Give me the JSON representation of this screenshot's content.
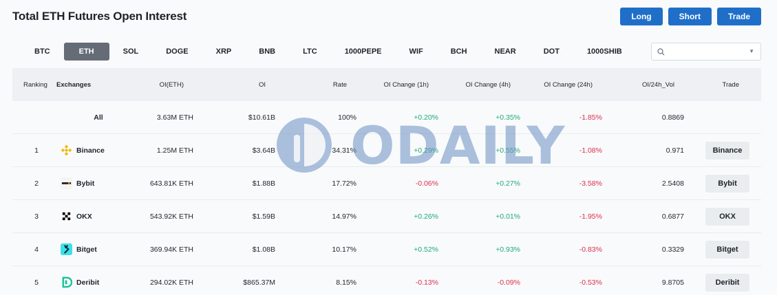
{
  "page": {
    "title": "Total ETH Futures Open Interest"
  },
  "actions": {
    "long": "Long",
    "short": "Short",
    "trade": "Trade"
  },
  "coins": [
    "BTC",
    "ETH",
    "SOL",
    "DOGE",
    "XRP",
    "BNB",
    "LTC",
    "1000PEPE",
    "WIF",
    "BCH",
    "NEAR",
    "DOT",
    "1000SHIB"
  ],
  "active_coin": "ETH",
  "search": {
    "placeholder": ""
  },
  "headers": {
    "ranking": "Ranking",
    "exchanges": "Exchanges",
    "oi_eth": "OI(ETH)",
    "oi": "OI",
    "rate": "Rate",
    "ch1h": "OI Change (1h)",
    "ch4h": "OI Change (4h)",
    "ch24h": "OI Change (24h)",
    "vol": "OI/24h_Vol",
    "trade": "Trade"
  },
  "rows": [
    {
      "rank": "",
      "exchange": "All",
      "logo": "",
      "oi_eth": "3.63M ETH",
      "oi": "$10.61B",
      "rate": "100%",
      "ch1h": "+0.20%",
      "ch4h": "+0.35%",
      "ch24h": "-1.85%",
      "vol": "0.8869",
      "trade": ""
    },
    {
      "rank": "1",
      "exchange": "Binance",
      "logo": "binance-icon",
      "oi_eth": "1.25M ETH",
      "oi": "$3.64B",
      "rate": "34.31%",
      "ch1h": "+0.29%",
      "ch4h": "+0.55%",
      "ch24h": "-1.08%",
      "vol": "0.971",
      "trade": "Binance"
    },
    {
      "rank": "2",
      "exchange": "Bybit",
      "logo": "bybit-icon",
      "oi_eth": "643.81K ETH",
      "oi": "$1.88B",
      "rate": "17.72%",
      "ch1h": "-0.06%",
      "ch4h": "+0.27%",
      "ch24h": "-3.58%",
      "vol": "2.5408",
      "trade": "Bybit"
    },
    {
      "rank": "3",
      "exchange": "OKX",
      "logo": "okx-icon",
      "oi_eth": "543.92K ETH",
      "oi": "$1.59B",
      "rate": "14.97%",
      "ch1h": "+0.26%",
      "ch4h": "+0.01%",
      "ch24h": "-1.95%",
      "vol": "0.6877",
      "trade": "OKX"
    },
    {
      "rank": "4",
      "exchange": "Bitget",
      "logo": "bitget-icon",
      "oi_eth": "369.94K ETH",
      "oi": "$1.08B",
      "rate": "10.17%",
      "ch1h": "+0.52%",
      "ch4h": "+0.93%",
      "ch24h": "-0.83%",
      "vol": "0.3329",
      "trade": "Bitget"
    },
    {
      "rank": "5",
      "exchange": "Deribit",
      "logo": "deribit-icon",
      "oi_eth": "294.02K ETH",
      "oi": "$865.37M",
      "rate": "8.15%",
      "ch1h": "-0.13%",
      "ch4h": "-0.09%",
      "ch24h": "-0.53%",
      "vol": "9.8705",
      "trade": "Deribit"
    }
  ],
  "watermark": {
    "text": "ODAILY"
  },
  "colors": {
    "accent": "#1f6fc9",
    "up": "#1aab74",
    "down": "#dd2e4d",
    "active_tab": "#656c76"
  }
}
